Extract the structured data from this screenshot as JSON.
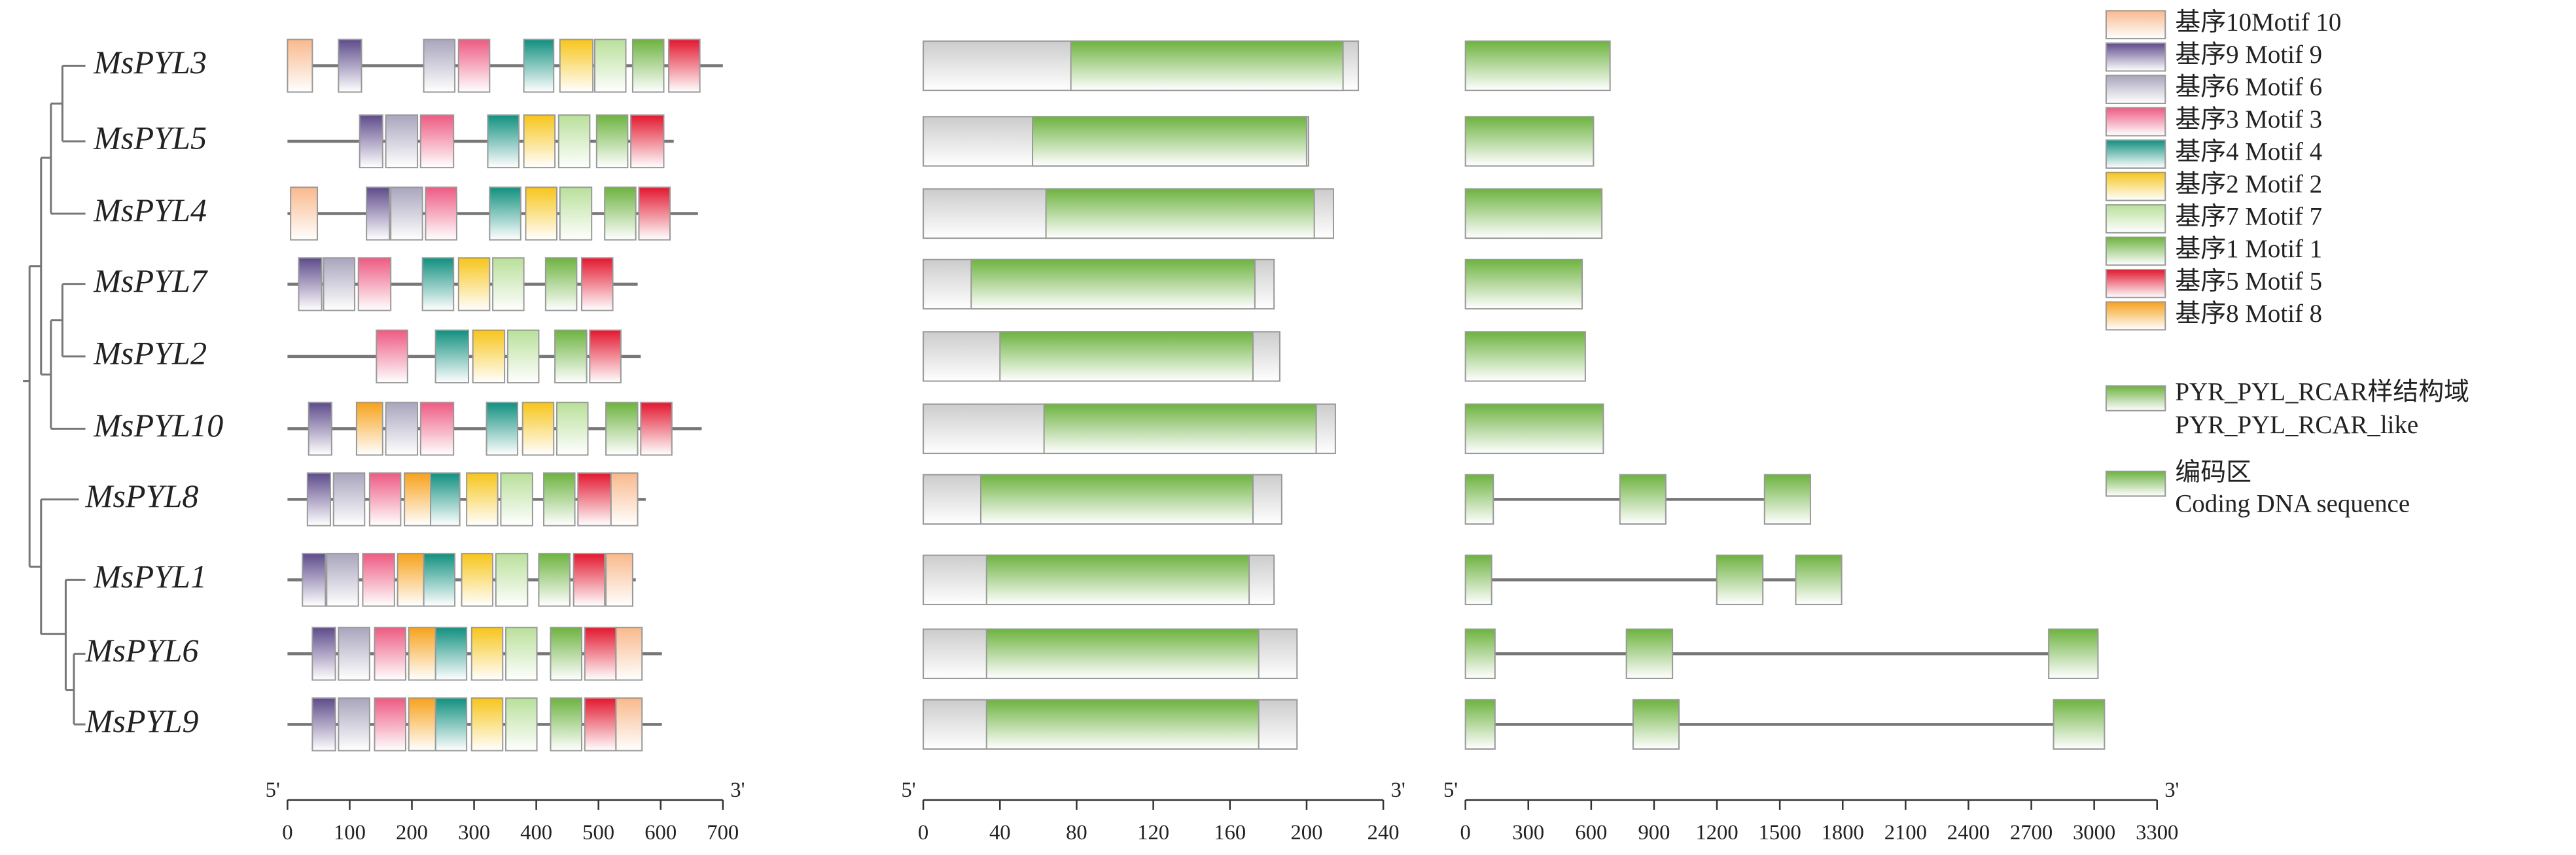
{
  "chart_data": [
    {
      "type": "motif",
      "categories": [
        "MsPYL3",
        "MsPYL5",
        "MsPYL4",
        "MsPYL7",
        "MsPYL2",
        "MsPYL10",
        "MsPYL8",
        "MsPYL1",
        "MsPYL6",
        "MsPYL9"
      ],
      "lengths": [
        700,
        621,
        660,
        563,
        568,
        666,
        576,
        560,
        602,
        602
      ],
      "xlim": [
        0,
        700
      ],
      "xticks": [
        0,
        100,
        200,
        300,
        400,
        500,
        600,
        700
      ],
      "end_labels": [
        "5'",
        "3'"
      ],
      "series": [
        {
          "name": "基序10Motif 10",
          "color": "#f9b98c",
          "values": [
            [
              0,
              40
            ],
            null,
            [
              5,
              48
            ],
            null,
            null,
            null,
            [
              520,
              563
            ],
            [
              512,
              555
            ],
            [
              528,
              570
            ],
            [
              528,
              570
            ]
          ]
        },
        {
          "name": "基序9 Motif 9",
          "color": "#5e4b8b",
          "values": [
            [
              82,
              119
            ],
            [
              116,
              153
            ],
            [
              127,
              164
            ],
            [
              18,
              55
            ],
            null,
            [
              34,
              71
            ],
            [
              32,
              69
            ],
            [
              24,
              61
            ],
            [
              40,
              77
            ],
            [
              40,
              77
            ]
          ]
        },
        {
          "name": "基序6 Motif 6",
          "color": "#a9a5bd",
          "values": [
            [
              219,
              269
            ],
            [
              158,
              209
            ],
            [
              166,
              217
            ],
            [
              58,
              108
            ],
            null,
            [
              158,
              209
            ],
            [
              74,
              124
            ],
            [
              63,
              114
            ],
            [
              82,
              132
            ],
            [
              82,
              132
            ]
          ]
        },
        {
          "name": "基序3 Motif 3",
          "color": "#ee5a82",
          "values": [
            [
              275,
              325
            ],
            [
              214,
              267
            ],
            [
              222,
              272
            ],
            [
              114,
              166
            ],
            [
              143,
              193
            ],
            [
              214,
              267
            ],
            [
              132,
              182
            ],
            [
              121,
              172
            ],
            [
              140,
              190
            ],
            [
              140,
              190
            ]
          ]
        },
        {
          "name": "基序4 Motif 4",
          "color": "#10907f",
          "values": [
            [
              380,
              428
            ],
            [
              322,
              372
            ],
            [
              325,
              375
            ],
            [
              217,
              267
            ],
            [
              238,
              291
            ],
            [
              320,
              370
            ],
            [
              230,
              277
            ],
            [
              219,
              269
            ],
            [
              238,
              288
            ],
            [
              238,
              288
            ]
          ]
        },
        {
          "name": "基序2 Motif 2",
          "color": "#f7c51a",
          "values": [
            [
              438,
              491
            ],
            [
              380,
              430
            ],
            [
              383,
              433
            ],
            [
              275,
              325
            ],
            [
              298,
              349
            ],
            [
              378,
              428
            ],
            [
              288,
              338
            ],
            [
              280,
              330
            ],
            [
              296,
              346
            ],
            [
              296,
              346
            ]
          ]
        },
        {
          "name": "基序7 Motif 7",
          "color": "#b9e09a",
          "values": [
            [
              494,
              544
            ],
            [
              436,
              486
            ],
            [
              438,
              489
            ],
            [
              330,
              380
            ],
            [
              354,
              404
            ],
            [
              433,
              483
            ],
            [
              343,
              394
            ],
            [
              335,
              386
            ],
            [
              351,
              401
            ],
            [
              351,
              401
            ]
          ]
        },
        {
          "name": "基序1 Motif 1",
          "color": "#6db33f",
          "values": [
            [
              555,
              605
            ],
            [
              497,
              547
            ],
            [
              510,
              560
            ],
            [
              415,
              465
            ],
            [
              430,
              481
            ],
            [
              512,
              563
            ],
            [
              412,
              462
            ],
            [
              404,
              454
            ],
            [
              423,
              473
            ],
            [
              423,
              473
            ]
          ]
        },
        {
          "name": "基序5 Motif 5",
          "color": "#e3172f",
          "values": [
            [
              613,
              663
            ],
            [
              552,
              605
            ],
            [
              565,
              615
            ],
            [
              473,
              523
            ],
            [
              486,
              536
            ],
            [
              568,
              618
            ],
            [
              467,
              520
            ],
            [
              460,
              510
            ],
            [
              478,
              528
            ],
            [
              478,
              528
            ]
          ]
        },
        {
          "name": "基序8 Motif 8",
          "color": "#f7a21b",
          "values": [
            null,
            null,
            null,
            null,
            null,
            [
              111,
              153
            ],
            [
              188,
              230
            ],
            [
              177,
              219
            ],
            [
              195,
              238
            ],
            [
              195,
              238
            ]
          ]
        }
      ]
    },
    {
      "type": "domain",
      "lengths": [
        227,
        201,
        214,
        183,
        186,
        215,
        187,
        183,
        195,
        195
      ],
      "color": "#cccccc",
      "xlim": [
        0,
        240
      ],
      "xticks": [
        0,
        40,
        80,
        120,
        160,
        200,
        240
      ],
      "end_labels": [
        "5'",
        "3'"
      ],
      "domain": {
        "name": [
          "PYR_PYL_RCAR样结构域",
          "PYR_PYL_RCAR_like"
        ],
        "color": "#6db33f",
        "values": [
          [
            77,
            219
          ],
          [
            57,
            200
          ],
          [
            64,
            204
          ],
          [
            25,
            173
          ],
          [
            40,
            172
          ],
          [
            63,
            205
          ],
          [
            30,
            172
          ],
          [
            33,
            170
          ],
          [
            33,
            175
          ],
          [
            33,
            175
          ]
        ]
      }
    },
    {
      "type": "gene-structure",
      "xlim": [
        0,
        3300
      ],
      "xticks": [
        0,
        300,
        600,
        900,
        1200,
        1500,
        1800,
        2100,
        2400,
        2700,
        3000,
        3300
      ],
      "end_labels": [
        "5'",
        "3'"
      ],
      "exons": {
        "name": [
          "编码区",
          "Coding DNA sequence"
        ],
        "color": "#6db33f",
        "values": [
          [
            [
              0,
              690
            ]
          ],
          [
            [
              0,
              611
            ]
          ],
          [
            [
              0,
              651
            ]
          ],
          [
            [
              0,
              557
            ]
          ],
          [
            [
              0,
              572
            ]
          ],
          [
            [
              0,
              658
            ]
          ],
          [
            [
              0,
              133
            ],
            [
              737,
              956
            ],
            [
              1427,
              1646
            ]
          ],
          [
            [
              0,
              125
            ],
            [
              1199,
              1419
            ],
            [
              1576,
              1795
            ]
          ],
          [
            [
              0,
              141
            ],
            [
              768,
              988
            ],
            [
              2783,
              3018
            ]
          ],
          [
            [
              0,
              141
            ],
            [
              800,
              1019
            ],
            [
              2806,
              3049
            ]
          ]
        ]
      }
    }
  ]
}
